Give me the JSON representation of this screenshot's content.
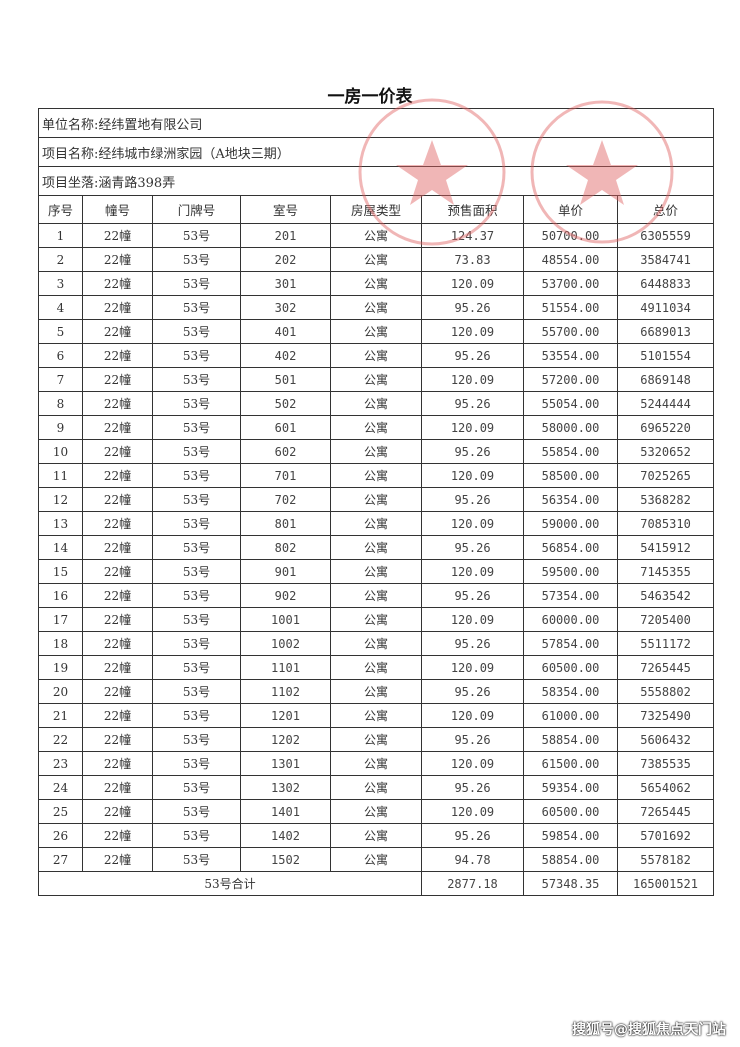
{
  "title": "一房一价表",
  "info": {
    "company": "单位名称:经纬置地有限公司",
    "project": "项目名称:经纬城市绿洲家园（A地块三期）",
    "location": "项目坐落:涵青路398弄"
  },
  "columns": [
    "序号",
    "幢号",
    "门牌号",
    "室号",
    "房屋类型",
    "预售面积",
    "单价",
    "总价"
  ],
  "rows": [
    [
      "1",
      "22幢",
      "53号",
      "201",
      "公寓",
      "124.37",
      "50700.00",
      "6305559"
    ],
    [
      "2",
      "22幢",
      "53号",
      "202",
      "公寓",
      "73.83",
      "48554.00",
      "3584741"
    ],
    [
      "3",
      "22幢",
      "53号",
      "301",
      "公寓",
      "120.09",
      "53700.00",
      "6448833"
    ],
    [
      "4",
      "22幢",
      "53号",
      "302",
      "公寓",
      "95.26",
      "51554.00",
      "4911034"
    ],
    [
      "5",
      "22幢",
      "53号",
      "401",
      "公寓",
      "120.09",
      "55700.00",
      "6689013"
    ],
    [
      "6",
      "22幢",
      "53号",
      "402",
      "公寓",
      "95.26",
      "53554.00",
      "5101554"
    ],
    [
      "7",
      "22幢",
      "53号",
      "501",
      "公寓",
      "120.09",
      "57200.00",
      "6869148"
    ],
    [
      "8",
      "22幢",
      "53号",
      "502",
      "公寓",
      "95.26",
      "55054.00",
      "5244444"
    ],
    [
      "9",
      "22幢",
      "53号",
      "601",
      "公寓",
      "120.09",
      "58000.00",
      "6965220"
    ],
    [
      "10",
      "22幢",
      "53号",
      "602",
      "公寓",
      "95.26",
      "55854.00",
      "5320652"
    ],
    [
      "11",
      "22幢",
      "53号",
      "701",
      "公寓",
      "120.09",
      "58500.00",
      "7025265"
    ],
    [
      "12",
      "22幢",
      "53号",
      "702",
      "公寓",
      "95.26",
      "56354.00",
      "5368282"
    ],
    [
      "13",
      "22幢",
      "53号",
      "801",
      "公寓",
      "120.09",
      "59000.00",
      "7085310"
    ],
    [
      "14",
      "22幢",
      "53号",
      "802",
      "公寓",
      "95.26",
      "56854.00",
      "5415912"
    ],
    [
      "15",
      "22幢",
      "53号",
      "901",
      "公寓",
      "120.09",
      "59500.00",
      "7145355"
    ],
    [
      "16",
      "22幢",
      "53号",
      "902",
      "公寓",
      "95.26",
      "57354.00",
      "5463542"
    ],
    [
      "17",
      "22幢",
      "53号",
      "1001",
      "公寓",
      "120.09",
      "60000.00",
      "7205400"
    ],
    [
      "18",
      "22幢",
      "53号",
      "1002",
      "公寓",
      "95.26",
      "57854.00",
      "5511172"
    ],
    [
      "19",
      "22幢",
      "53号",
      "1101",
      "公寓",
      "120.09",
      "60500.00",
      "7265445"
    ],
    [
      "20",
      "22幢",
      "53号",
      "1102",
      "公寓",
      "95.26",
      "58354.00",
      "5558802"
    ],
    [
      "21",
      "22幢",
      "53号",
      "1201",
      "公寓",
      "120.09",
      "61000.00",
      "7325490"
    ],
    [
      "22",
      "22幢",
      "53号",
      "1202",
      "公寓",
      "95.26",
      "58854.00",
      "5606432"
    ],
    [
      "23",
      "22幢",
      "53号",
      "1301",
      "公寓",
      "120.09",
      "61500.00",
      "7385535"
    ],
    [
      "24",
      "22幢",
      "53号",
      "1302",
      "公寓",
      "95.26",
      "59354.00",
      "5654062"
    ],
    [
      "25",
      "22幢",
      "53号",
      "1401",
      "公寓",
      "120.09",
      "60500.00",
      "7265445"
    ],
    [
      "26",
      "22幢",
      "53号",
      "1402",
      "公寓",
      "95.26",
      "59854.00",
      "5701692"
    ],
    [
      "27",
      "22幢",
      "53号",
      "1502",
      "公寓",
      "94.78",
      "58854.00",
      "5578182"
    ]
  ],
  "total": {
    "label": "53号合计",
    "area": "2877.18",
    "unit_price": "57348.35",
    "total_price": "165001521"
  },
  "watermark": "搜狐号@搜狐焦点天门站",
  "stamp_color": "#e06060"
}
